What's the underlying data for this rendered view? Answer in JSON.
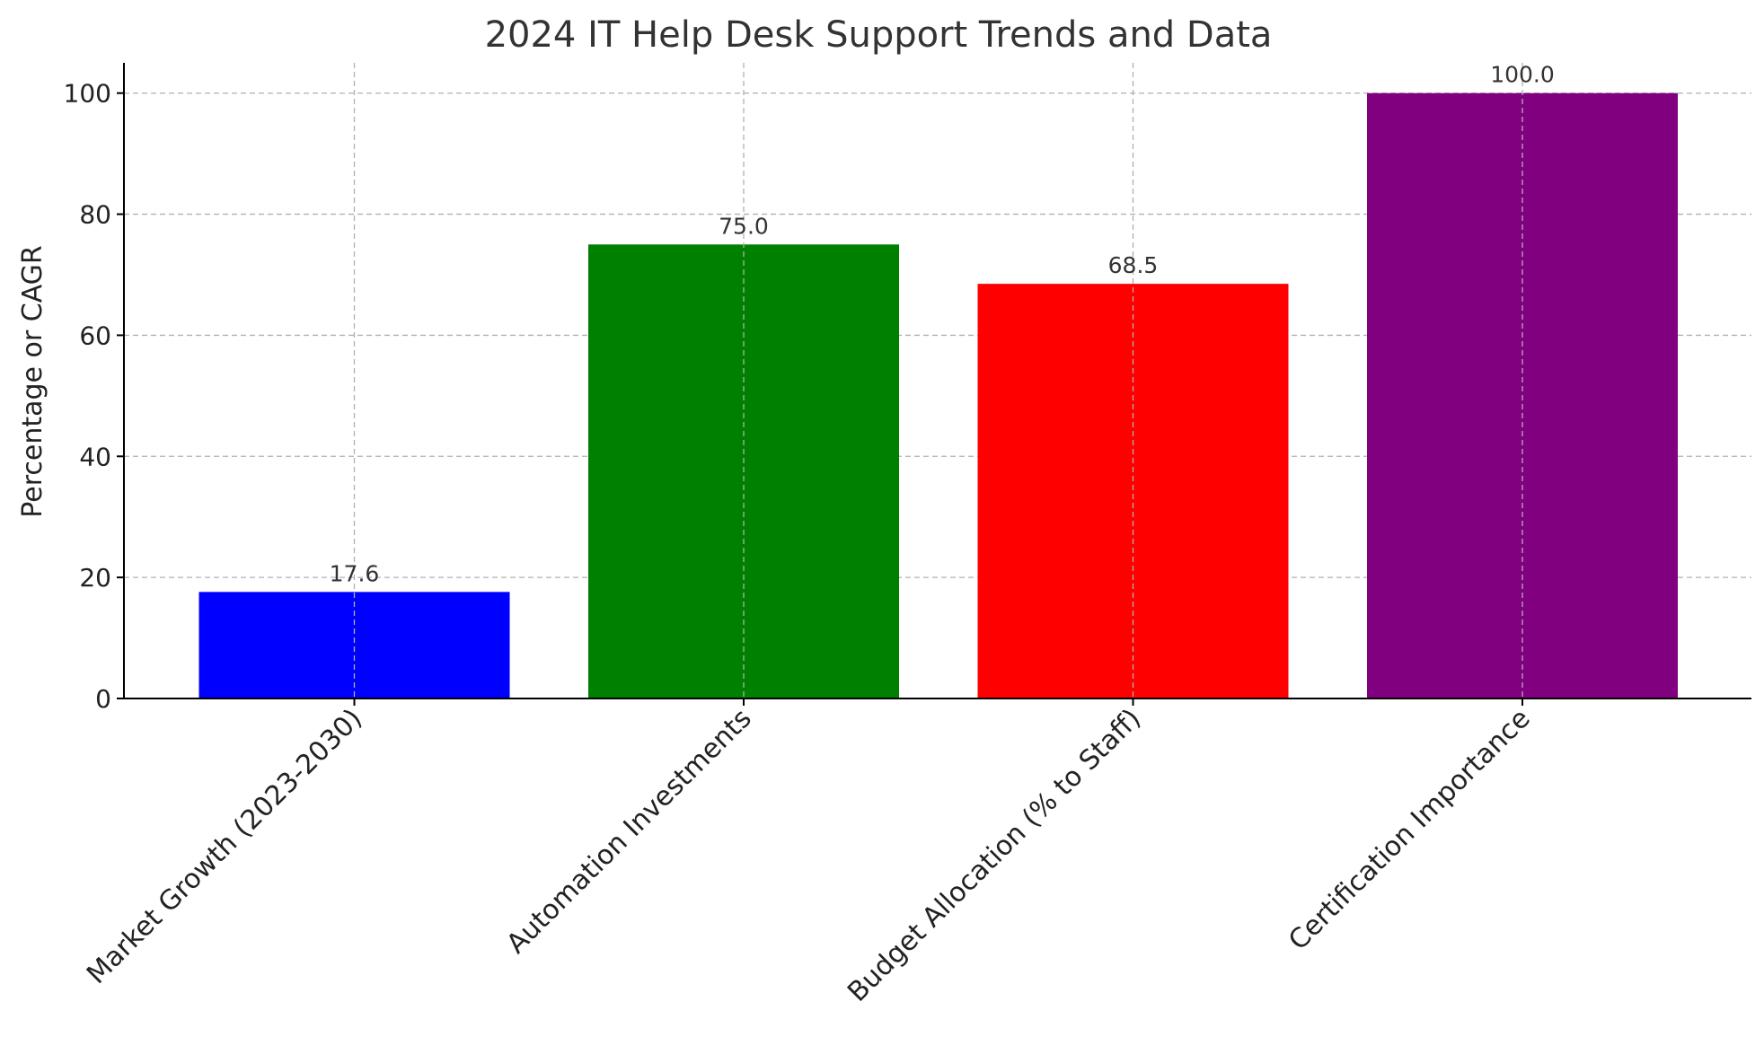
{
  "chart_data": {
    "type": "bar",
    "title": "2024 IT Help Desk Support Trends and Data",
    "xlabel": "",
    "ylabel": "Percentage or CAGR",
    "categories": [
      "Market Growth (2023-2030)",
      "Automation Investments",
      "Budget Allocation (% to Staff)",
      "Certification Importance"
    ],
    "values": [
      17.6,
      75.0,
      68.5,
      100.0
    ],
    "value_labels": [
      "17.6",
      "75.0",
      "68.5",
      "100.0"
    ],
    "colors": [
      "#0000ff",
      "#008000",
      "#ff0000",
      "#800080"
    ],
    "ylim": [
      0,
      105
    ],
    "yticks": [
      0,
      20,
      40,
      60,
      80,
      100
    ],
    "grid": true,
    "legend": "none"
  }
}
